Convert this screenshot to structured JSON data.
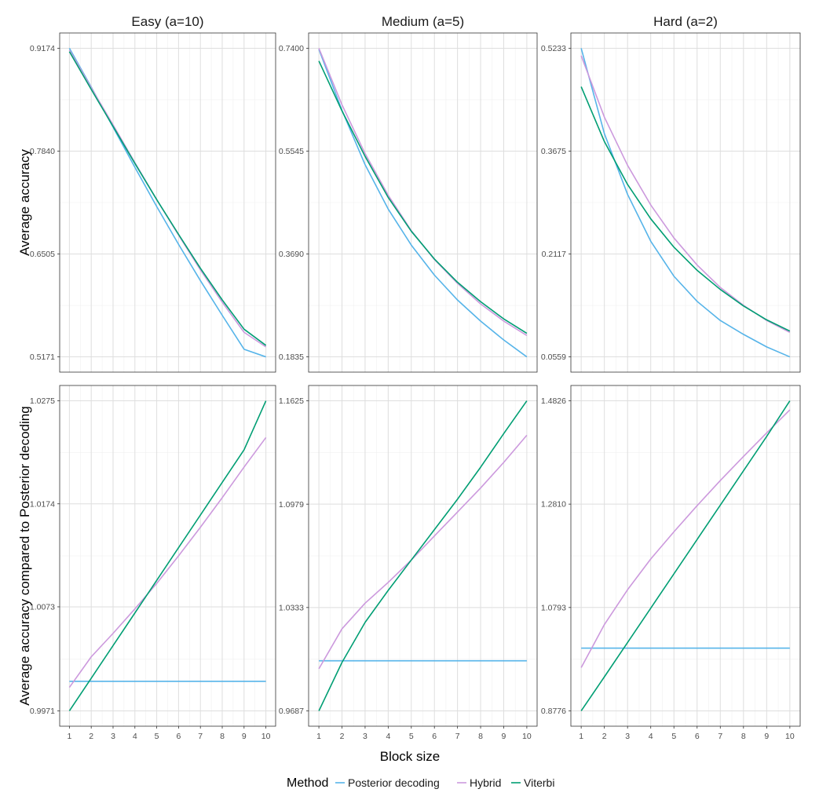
{
  "chart_data": {
    "type": "line",
    "facet_columns": [
      "Easy (a=10)",
      "Medium (a=5)",
      "Hard (a=2)"
    ],
    "xlabel": "Block size",
    "x": [
      1,
      2,
      3,
      4,
      5,
      6,
      7,
      8,
      9,
      10
    ],
    "x_ticks": [
      "1",
      "2",
      "3",
      "4",
      "5",
      "6",
      "7",
      "8",
      "9",
      "10"
    ],
    "grid": true,
    "legend": {
      "title": "Method",
      "position": "bottom",
      "entries": [
        {
          "name": "Posterior decoding",
          "color": "#56B4E9"
        },
        {
          "name": "Hybrid",
          "color": "#CC99DD"
        },
        {
          "name": "Viterbi",
          "color": "#009E73"
        }
      ]
    },
    "rows": [
      {
        "ylabel": "Average accuracy",
        "panels": [
          {
            "column": "Easy (a=10)",
            "ylim": [
              0.5171,
              0.9174
            ],
            "y_ticks": [
              "0.5171",
              "0.6505",
              "0.7840",
              "0.9174"
            ],
            "series": [
              {
                "name": "Posterior decoding",
                "values": [
                  0.9174,
                  0.867,
                  0.815,
                  0.763,
                  0.712,
                  0.663,
                  0.616,
                  0.571,
                  0.527,
                  0.5171
                ]
              },
              {
                "name": "Hybrid",
                "values": [
                  0.915,
                  0.866,
                  0.818,
                  0.769,
                  0.721,
                  0.675,
                  0.63,
                  0.588,
                  0.549,
                  0.53
                ]
              },
              {
                "name": "Viterbi",
                "values": [
                  0.913,
                  0.864,
                  0.816,
                  0.768,
                  0.721,
                  0.676,
                  0.632,
                  0.591,
                  0.553,
                  0.532
                ]
              }
            ]
          },
          {
            "column": "Medium (a=5)",
            "ylim": [
              0.1835,
              0.74
            ],
            "y_ticks": [
              "0.1835",
              "0.3690",
              "0.5545",
              "0.7400"
            ],
            "series": [
              {
                "name": "Posterior decoding",
                "values": [
                  0.738,
                  0.628,
                  0.53,
                  0.45,
                  0.385,
                  0.331,
                  0.286,
                  0.248,
                  0.214,
                  0.1835
                ]
              },
              {
                "name": "Hybrid",
                "values": [
                  0.74,
                  0.638,
                  0.55,
                  0.475,
                  0.411,
                  0.359,
                  0.316,
                  0.279,
                  0.248,
                  0.222
                ]
              },
              {
                "name": "Viterbi",
                "values": [
                  0.717,
                  0.627,
                  0.545,
                  0.471,
                  0.41,
                  0.36,
                  0.318,
                  0.283,
                  0.252,
                  0.226
                ]
              }
            ]
          },
          {
            "column": "Hard (a=2)",
            "ylim": [
              0.0559,
              0.5233
            ],
            "y_ticks": [
              "0.0559",
              "0.2117",
              "0.3675",
              "0.5233"
            ],
            "series": [
              {
                "name": "Posterior decoding",
                "values": [
                  0.5233,
                  0.394,
                  0.302,
                  0.231,
                  0.178,
                  0.14,
                  0.111,
                  0.09,
                  0.071,
                  0.0559
                ]
              },
              {
                "name": "Hybrid",
                "values": [
                  0.512,
                  0.419,
                  0.346,
                  0.286,
                  0.236,
                  0.195,
                  0.161,
                  0.134,
                  0.111,
                  0.093
                ]
              },
              {
                "name": "Viterbi",
                "values": [
                  0.465,
                  0.382,
                  0.317,
                  0.265,
                  0.222,
                  0.187,
                  0.158,
                  0.133,
                  0.112,
                  0.095
                ]
              }
            ]
          }
        ]
      },
      {
        "ylabel": "Average accuracy compared to Posterior decoding",
        "panels": [
          {
            "column": "Easy (a=10)",
            "ylim": [
              0.9971,
              1.0275
            ],
            "y_ticks": [
              "0.9971",
              "1.0073",
              "1.0174",
              "1.0275"
            ],
            "series": [
              {
                "name": "Posterior decoding",
                "values": [
                  1.0,
                  1.0,
                  1.0,
                  1.0,
                  1.0,
                  1.0,
                  1.0,
                  1.0,
                  1.0,
                  1.0
                ]
              },
              {
                "name": "Hybrid",
                "values": [
                  0.9994,
                  1.0024,
                  1.0047,
                  1.0071,
                  1.0096,
                  1.0123,
                  1.0151,
                  1.018,
                  1.021,
                  1.0239
                ]
              },
              {
                "name": "Viterbi",
                "values": [
                  0.9971,
                  1.0003,
                  1.0035,
                  1.0067,
                  1.0099,
                  1.0131,
                  1.0163,
                  1.0195,
                  1.0227,
                  1.0275
                ]
              }
            ]
          },
          {
            "column": "Medium (a=5)",
            "ylim": [
              0.9687,
              1.1625
            ],
            "y_ticks": [
              "0.9687",
              "1.0333",
              "1.0979",
              "1.1625"
            ],
            "series": [
              {
                "name": "Posterior decoding",
                "values": [
                  1.0,
                  1.0,
                  1.0,
                  1.0,
                  1.0,
                  1.0,
                  1.0,
                  1.0,
                  1.0,
                  1.0
                ]
              },
              {
                "name": "Hybrid",
                "values": [
                  0.995,
                  1.02,
                  1.036,
                  1.049,
                  1.063,
                  1.078,
                  1.093,
                  1.108,
                  1.124,
                  1.141
                ]
              },
              {
                "name": "Viterbi",
                "values": [
                  0.9687,
                  0.999,
                  1.024,
                  1.044,
                  1.063,
                  1.082,
                  1.101,
                  1.121,
                  1.142,
                  1.1625
                ]
              }
            ]
          },
          {
            "column": "Hard (a=2)",
            "ylim": [
              0.8776,
              1.4826
            ],
            "y_ticks": [
              "0.8776",
              "1.0793",
              "1.2810",
              "1.4826"
            ],
            "series": [
              {
                "name": "Posterior decoding",
                "values": [
                  1.0,
                  1.0,
                  1.0,
                  1.0,
                  1.0,
                  1.0,
                  1.0,
                  1.0,
                  1.0,
                  1.0
                ]
              },
              {
                "name": "Hybrid",
                "values": [
                  0.962,
                  1.046,
                  1.114,
                  1.174,
                  1.227,
                  1.278,
                  1.327,
                  1.374,
                  1.42,
                  1.465
                ]
              },
              {
                "name": "Viterbi",
                "values": [
                  0.8776,
                  0.944,
                  1.011,
                  1.078,
                  1.145,
                  1.212,
                  1.279,
                  1.346,
                  1.413,
                  1.4826
                ]
              }
            ]
          }
        ]
      }
    ]
  }
}
